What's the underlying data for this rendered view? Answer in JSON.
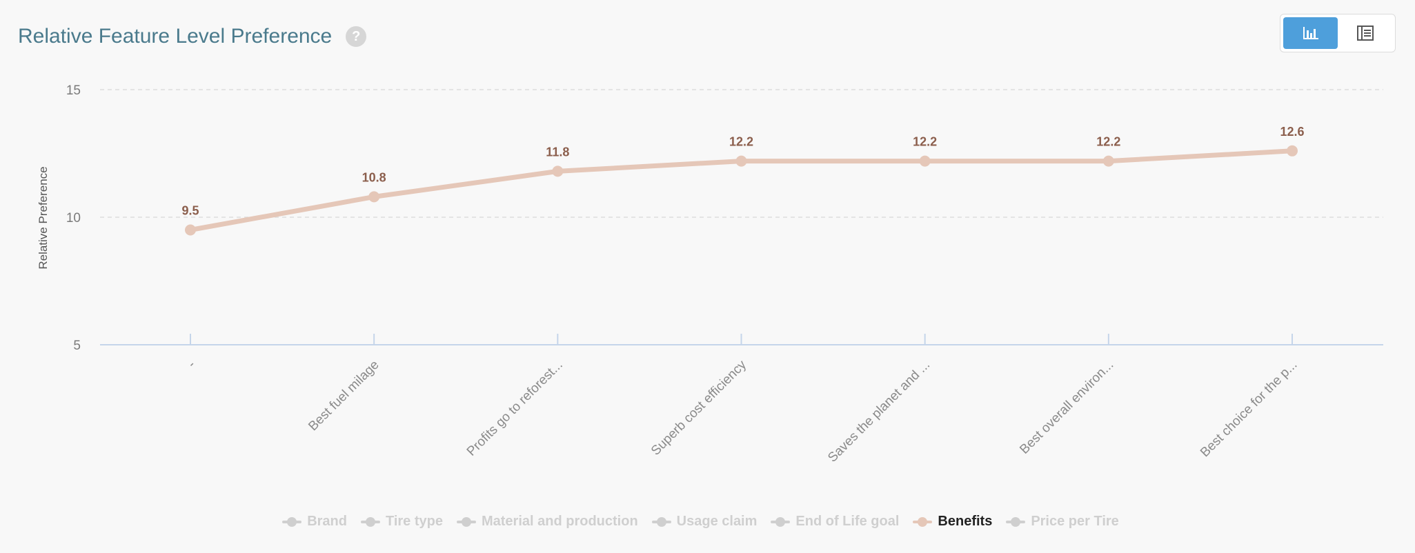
{
  "header": {
    "title": "Relative Feature Level Preference",
    "help_icon": "question-icon"
  },
  "view_toggle": {
    "options": [
      {
        "icon": "bar-chart-icon",
        "active": true
      },
      {
        "icon": "table-list-icon",
        "active": false
      }
    ]
  },
  "colors": {
    "series": "#e5c7b8",
    "data_label": "#8b5e4c",
    "inactive_legend": "#cfcfcf",
    "active_legend_text": "#222222",
    "axis": "#c5d5ea",
    "grid": "#dddddd",
    "toggle_active": "#4e9fdb"
  },
  "chart_data": {
    "type": "line",
    "title": "",
    "xlabel": "",
    "ylabel": "Relative Preference",
    "ylim": [
      5,
      15
    ],
    "yticks": [
      5,
      10,
      15
    ],
    "grid": true,
    "categories": [
      "-",
      "Best fuel milage",
      "Profits go to reforest...",
      "Superb cost efficiency",
      "Saves the planet and ...",
      "Best overall environ...",
      "Best choice for the p..."
    ],
    "series": [
      {
        "name": "Benefits",
        "values": [
          9.5,
          10.8,
          11.8,
          12.2,
          12.2,
          12.2,
          12.6
        ],
        "labels": [
          "9.5",
          "10.8",
          "11.8",
          "12.2",
          "12.2",
          "12.2",
          "12.6"
        ]
      }
    ],
    "legend_position": "bottom-center"
  },
  "legend": [
    {
      "label": "Brand",
      "active": false
    },
    {
      "label": "Tire type",
      "active": false
    },
    {
      "label": "Material and production",
      "active": false
    },
    {
      "label": "Usage claim",
      "active": false
    },
    {
      "label": "End of Life goal",
      "active": false
    },
    {
      "label": "Benefits",
      "active": true
    },
    {
      "label": "Price per Tire",
      "active": false
    }
  ]
}
